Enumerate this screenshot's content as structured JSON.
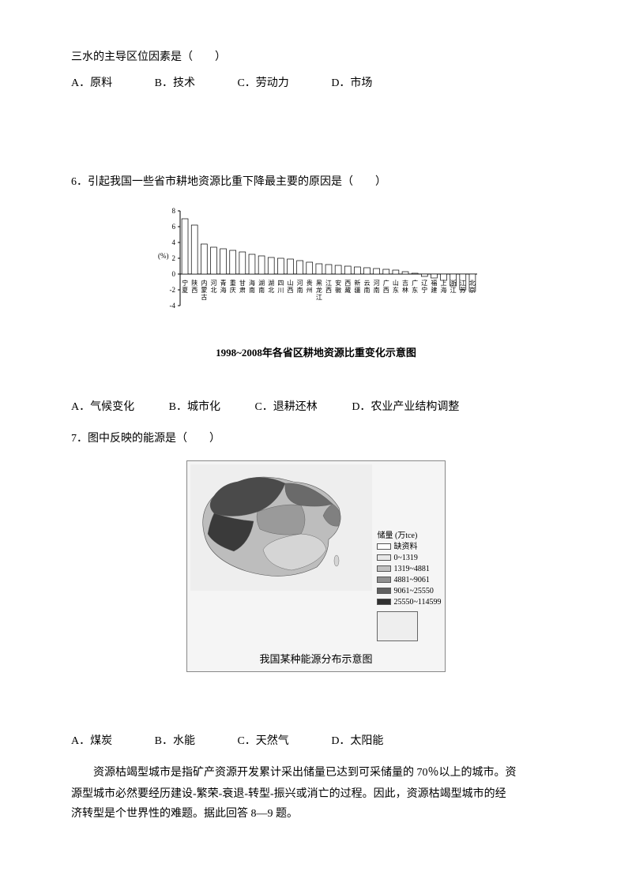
{
  "q5": {
    "stem": "三水的主导区位因素是（　　）",
    "options": {
      "A": "A．原料",
      "B": "B．技术",
      "C": "C．劳动力",
      "D": "D．市场"
    }
  },
  "q6": {
    "stem": "6．引起我国一些省市耕地资源比重下降最主要的原因是（　　）",
    "options": {
      "A": "A．气候变化",
      "B": "B．城市化",
      "C": "C．退耕还林",
      "D": "D．农业产业结构调整"
    },
    "chart": {
      "type": "bar",
      "caption": "1998~2008年各省区耕地资源比重变化示意图",
      "ylabel": "(%)",
      "ylim": [
        -4,
        8
      ],
      "ytick_step": 2,
      "yticks": [
        -4,
        -2,
        0,
        2,
        4,
        6,
        8
      ],
      "background_color": "#ffffff",
      "axis_color": "#000000",
      "bar_fill": "#ffffff",
      "bar_stroke": "#000000",
      "bar_width": 0.65,
      "font_size_labels": 8,
      "categories": [
        "宁夏",
        "陕西",
        "内蒙古",
        "河北",
        "青海",
        "重庆",
        "甘肃",
        "海南",
        "湖南",
        "湖北",
        "四川",
        "山西",
        "河南",
        "贵州",
        "黑龙江",
        "江西",
        "安徽",
        "西藏",
        "新疆",
        "云南",
        "河南",
        "广西",
        "山东",
        "吉林",
        "广东",
        "辽宁",
        "福建",
        "上海",
        "浙江",
        "江苏",
        "北京"
      ],
      "values": [
        7.0,
        6.2,
        3.8,
        3.4,
        3.2,
        3.0,
        2.8,
        2.5,
        2.3,
        2.1,
        2.0,
        1.9,
        1.7,
        1.5,
        1.3,
        1.2,
        1.1,
        1.0,
        0.9,
        0.8,
        0.7,
        0.6,
        0.5,
        0.3,
        0.1,
        -0.3,
        -0.5,
        -0.8,
        -1.5,
        -2.0,
        -2.2
      ]
    }
  },
  "q7": {
    "stem": "7．图中反映的能源是（　　）",
    "options": {
      "A": "A．煤炭",
      "B": "B．水能",
      "C": "C．天然气",
      "D": "D．太阳能"
    },
    "map": {
      "type": "choropleth",
      "caption": "我国某种能源分布示意图",
      "legend_title": "储量 (万tce)",
      "background_color": "#e8e8e8",
      "legend_items": [
        {
          "label": "缺资料",
          "fill": "#ffffff"
        },
        {
          "label": "0~1319",
          "fill": "#e8e8e8"
        },
        {
          "label": "1319~4881",
          "fill": "#c0c0c0"
        },
        {
          "label": "4881~9061",
          "fill": "#909090"
        },
        {
          "label": "9061~25550",
          "fill": "#606060"
        },
        {
          "label": "25550~114599",
          "fill": "#303030"
        }
      ]
    }
  },
  "passage": {
    "line1": "资源枯竭型城市是指矿产资源开发累计采出储量已达到可采储量的 70％以上的城市。资",
    "line2": "源型城市必然要经历建设-繁荣-衰退-转型-振兴或消亡的过程。因此，资源枯竭型城市的经",
    "line3": "济转型是个世界性的难题。据此回答 8—9 题。"
  }
}
